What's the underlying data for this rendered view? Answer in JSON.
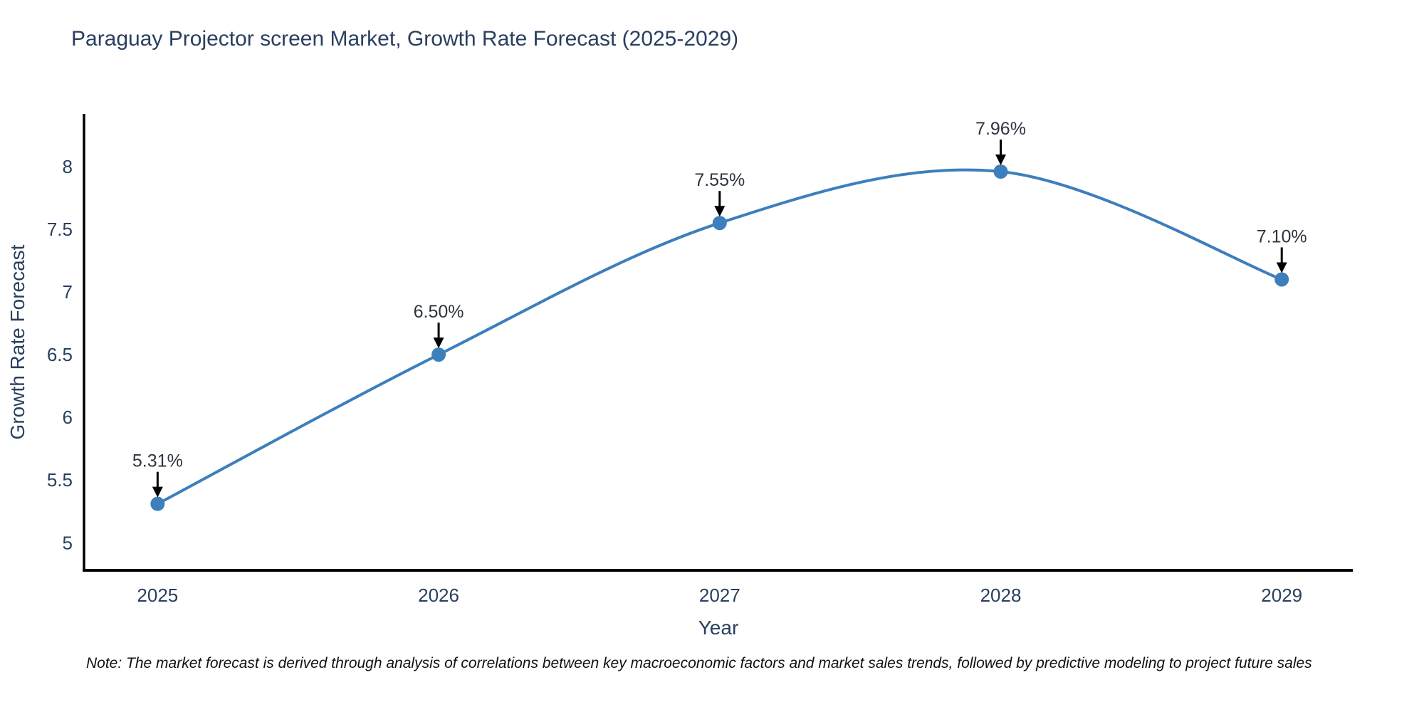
{
  "chart": {
    "title": "Paraguay Projector screen Market, Growth Rate Forecast (2025-2029)",
    "note": "Note: The market forecast is derived through analysis of correlations between key macroeconomic factors and market sales trends, followed by predictive modeling to project future sales",
    "colors": {
      "line": "#3d7ebd",
      "marker": "#3d7ebd",
      "title_text": "#2a3f5f",
      "axis_text": "#2a3f5f",
      "annotation_text": "#2e3440",
      "axis_line": "#000000",
      "arrow": "#000000",
      "background": "#ffffff"
    }
  },
  "chart_data": {
    "type": "line",
    "title": "Paraguay Projector screen Market, Growth Rate Forecast (2025-2029)",
    "x": [
      "2025",
      "2026",
      "2027",
      "2028",
      "2029"
    ],
    "values": [
      5.31,
      6.5,
      7.55,
      7.96,
      7.1
    ],
    "point_labels": [
      "5.31%",
      "6.50%",
      "7.55%",
      "7.96%",
      "7.10%"
    ],
    "xlabel": "Year",
    "ylabel": "Growth Rate Forecast",
    "ylim": [
      4.78,
      8.42
    ],
    "yticks": [
      "5",
      "5.5",
      "6",
      "6.5",
      "7",
      "7.5",
      "8"
    ],
    "grid": false,
    "legend": "none",
    "line_shape": "spline",
    "markers": true,
    "annotation_style": "percent labels above each point with black downward arrows"
  }
}
